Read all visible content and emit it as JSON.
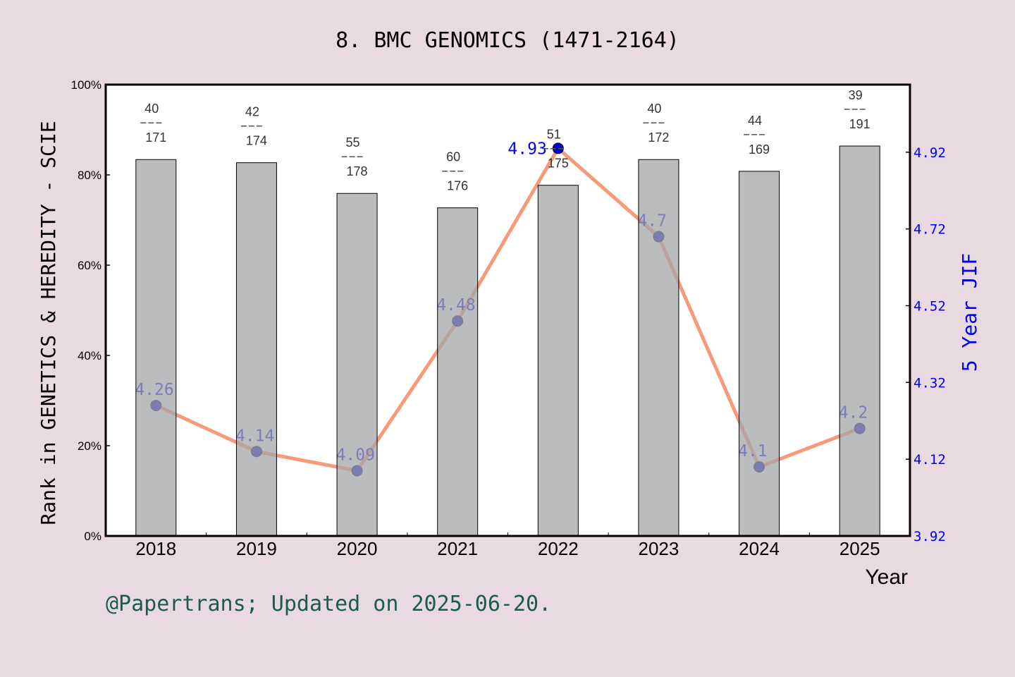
{
  "chart_data": {
    "type": "bar+line",
    "title": "8. BMC GENOMICS (1471-2164)",
    "xlabel": "Year",
    "ylabel_left": "Rank in GENETICS & HEREDITY - SCIE",
    "ylabel_right": "5 Year JIF",
    "categories": [
      "2018",
      "2019",
      "2020",
      "2021",
      "2022",
      "2023",
      "2024",
      "2025"
    ],
    "left_axis": {
      "ylim": [
        0,
        100
      ],
      "ticks": [
        "0%",
        "20%",
        "40%",
        "60%",
        "80%",
        "100%"
      ]
    },
    "right_axis": {
      "ylim": [
        3.92,
        5.096
      ],
      "ticks": [
        "3.92",
        "4.12",
        "4.32",
        "4.52",
        "4.72",
        "4.92"
      ]
    },
    "bars": {
      "name": "Rank percentile",
      "values": [
        83.4,
        82.7,
        75.9,
        72.7,
        77.7,
        83.4,
        80.8,
        86.4
      ]
    },
    "rank_labels": [
      {
        "rank": "40",
        "total": "171"
      },
      {
        "rank": "42",
        "total": "174"
      },
      {
        "rank": "55",
        "total": "178"
      },
      {
        "rank": "60",
        "total": "176"
      },
      {
        "rank": "51",
        "total": "175"
      },
      {
        "rank": "40",
        "total": "172"
      },
      {
        "rank": "44",
        "total": "169"
      },
      {
        "rank": "39",
        "total": "191"
      }
    ],
    "line": {
      "name": "5 Year JIF",
      "values": [
        4.26,
        4.14,
        4.09,
        4.48,
        4.93,
        4.7,
        4.1,
        4.2
      ],
      "labels": [
        "4.26",
        "4.14",
        "4.09",
        "4.48",
        "4.93",
        "4.7",
        "4.1",
        "4.2"
      ]
    },
    "colors": {
      "bar": "#a4a5a8",
      "line": "#f79a7a",
      "point": "#0000cc",
      "jif_text": "#0000ee",
      "right_axis": "#0000ee",
      "footer": "#1a5c4c"
    }
  },
  "footer": "@Papertrans; Updated on 2025-06-20."
}
